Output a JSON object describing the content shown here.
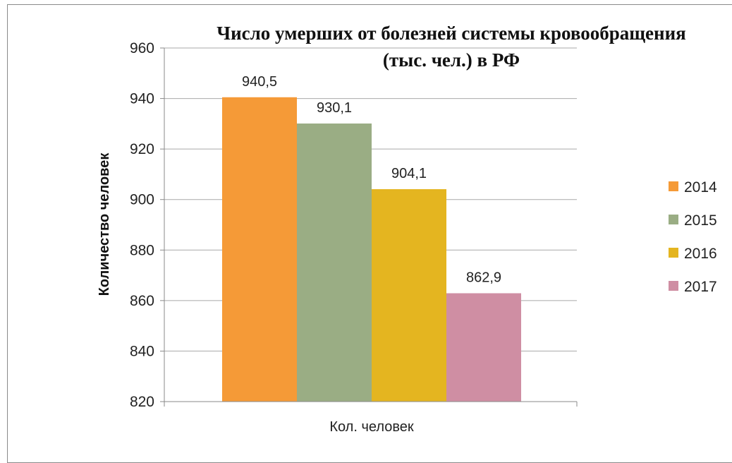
{
  "chart_data": {
    "type": "bar",
    "title_line1": "Число умерших от болезней системы кровообращения",
    "title_line2": "(тыс. чел.) в РФ",
    "xlabel": "",
    "ylabel": "Количество человек",
    "categories": [
      "Кол. человек"
    ],
    "series": [
      {
        "name": "2014",
        "values": [
          940.5
        ],
        "label": "940,5",
        "color": "#f59a37"
      },
      {
        "name": "2015",
        "values": [
          930.1
        ],
        "label": "930,1",
        "color": "#9aad84"
      },
      {
        "name": "2016",
        "values": [
          904.1
        ],
        "label": "904,1",
        "color": "#e4b520"
      },
      {
        "name": "2017",
        "values": [
          862.9
        ],
        "label": "862,9",
        "color": "#cf8ea3"
      }
    ],
    "ylim": [
      820,
      960
    ],
    "yticks": [
      "820",
      "840",
      "860",
      "880",
      "900",
      "920",
      "940",
      "960"
    ],
    "grid": true,
    "legend_position": "right"
  }
}
